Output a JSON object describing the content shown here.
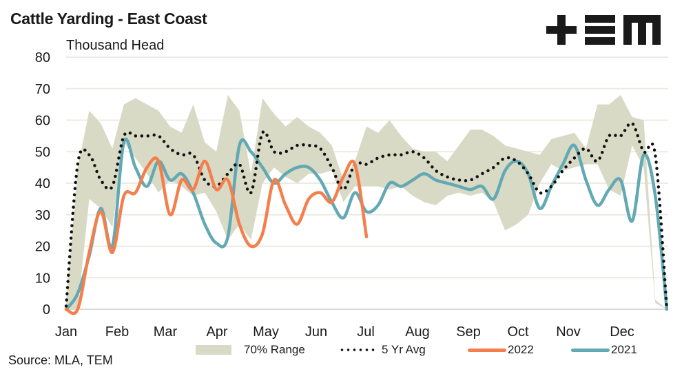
{
  "header": {
    "title": "Cattle Yarding - East Coast",
    "unit_label": "Thousand Head",
    "logo_text": "+EM"
  },
  "source": "Source: MLA, TEM",
  "colors": {
    "range": "#d9dac5",
    "avg": "#111111",
    "y2022": "#f47f4c",
    "y2021": "#62a9b3",
    "grid": "#ecebe2"
  },
  "chart_data": {
    "type": "line",
    "title": "Cattle Yarding - East Coast",
    "xlabel": "",
    "ylabel": "Thousand Head",
    "ylim": [
      0,
      80
    ],
    "yticks": [
      0,
      10,
      20,
      30,
      40,
      50,
      60,
      70,
      80
    ],
    "x_tick_labels": [
      "Jan",
      "Feb",
      "Mar",
      "Apr",
      "May",
      "Jun",
      "Jul",
      "Aug",
      "Sep",
      "Oct",
      "Nov",
      "Dec"
    ],
    "x_unit": "week (1-53)",
    "grid": true,
    "legend_position": "bottom",
    "legend": [
      "70% Range",
      "5 Yr Avg",
      "2022",
      "2021"
    ],
    "range_70pct": {
      "name": "70% Range",
      "upper": [
        2,
        45,
        63,
        59,
        51,
        65,
        67,
        65,
        63,
        58,
        56,
        65,
        53,
        50,
        68,
        63,
        43,
        67,
        62,
        58,
        61,
        58,
        56,
        52,
        41,
        47,
        58,
        56,
        60,
        55,
        51,
        50,
        50,
        47,
        52,
        57,
        57,
        55,
        52,
        51,
        50,
        49,
        54,
        55,
        56,
        51,
        65,
        65,
        68,
        61,
        60,
        3,
        0
      ],
      "lower": [
        0,
        0,
        35,
        32,
        26,
        53,
        48,
        43,
        37,
        41,
        39,
        36,
        37,
        31,
        22,
        27,
        22,
        40,
        45,
        42,
        40,
        43,
        43,
        44,
        34,
        39,
        39,
        39,
        38,
        39,
        36,
        34,
        33,
        36,
        37,
        36,
        37,
        34,
        25,
        27,
        30,
        40,
        46,
        44,
        45,
        46,
        46,
        38,
        36,
        52,
        45,
        2,
        0
      ]
    },
    "series": [
      {
        "name": "5 Yr Avg",
        "style": "dotted",
        "values": [
          1,
          46,
          49,
          41,
          39,
          55,
          55,
          55,
          55,
          51,
          49,
          49,
          41,
          39,
          43,
          46,
          37,
          56,
          50,
          50,
          52,
          52,
          51,
          45,
          38,
          46,
          46,
          48,
          49,
          49,
          50,
          48,
          44,
          42,
          41,
          41,
          43,
          45,
          48,
          47,
          43,
          37,
          39,
          44,
          48,
          51,
          47,
          55,
          55,
          59,
          50,
          49,
          0
        ]
      },
      {
        "name": "2022",
        "style": "solid",
        "values": [
          0,
          0,
          18,
          31,
          18,
          36,
          37,
          45,
          47,
          30,
          41,
          38,
          47,
          38,
          41,
          27,
          20,
          24,
          41,
          33,
          27,
          35,
          37,
          34,
          42,
          46,
          23
        ]
      },
      {
        "name": "2021",
        "style": "solid",
        "values": [
          0,
          5,
          17,
          32,
          20,
          53,
          45,
          39,
          47,
          41,
          43,
          37,
          27,
          21,
          23,
          52,
          50,
          45,
          40,
          43,
          45,
          45,
          41,
          34,
          29,
          37,
          31,
          33,
          40,
          39,
          41,
          43,
          41,
          40,
          39,
          38,
          39,
          35,
          44,
          47,
          43,
          32,
          39,
          46,
          52,
          41,
          33,
          38,
          41,
          28,
          49,
          36,
          0
        ]
      }
    ]
  }
}
